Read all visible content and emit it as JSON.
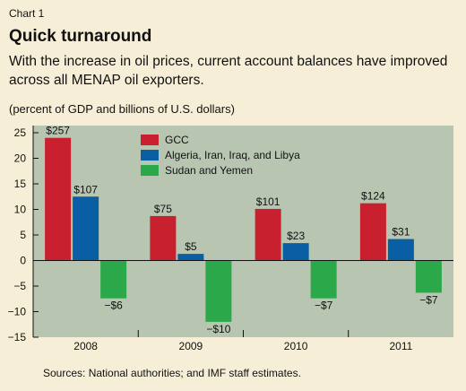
{
  "header": {
    "chart_number": "Chart 1",
    "title": "Quick turnaround",
    "subtitle": "With the increase in oil prices, current account balances have improved across all MENAP oil exporters.",
    "units": "(percent of GDP and billions of U.S. dollars)"
  },
  "source": "Sources: National authorities; and IMF staff estimates.",
  "chart_data": {
    "type": "bar",
    "categories": [
      "2008",
      "2009",
      "2010",
      "2011"
    ],
    "ylim": [
      -15,
      25
    ],
    "yticks": [
      25,
      20,
      15,
      10,
      5,
      0,
      -5,
      -10,
      -15
    ],
    "grid": false,
    "legend_position": "top-center",
    "series": [
      {
        "name": "GCC",
        "color": "#c8202e",
        "values": [
          24,
          8.7,
          10.1,
          11.2
        ],
        "labels": [
          "$257",
          "$75",
          "$101",
          "$124"
        ]
      },
      {
        "name": "Algeria, Iran, Iraq, and  Libya",
        "color": "#0a5ea3",
        "values": [
          12.5,
          1.3,
          3.4,
          4.2
        ],
        "labels": [
          "$107",
          "$5",
          "$23",
          "$31"
        ]
      },
      {
        "name": "Sudan and Yemen",
        "color": "#2aa84a",
        "values": [
          -7.4,
          -12,
          -7.4,
          -6.3
        ],
        "labels": [
          "−$6",
          "−$10",
          "−$7",
          "−$7"
        ]
      }
    ]
  }
}
